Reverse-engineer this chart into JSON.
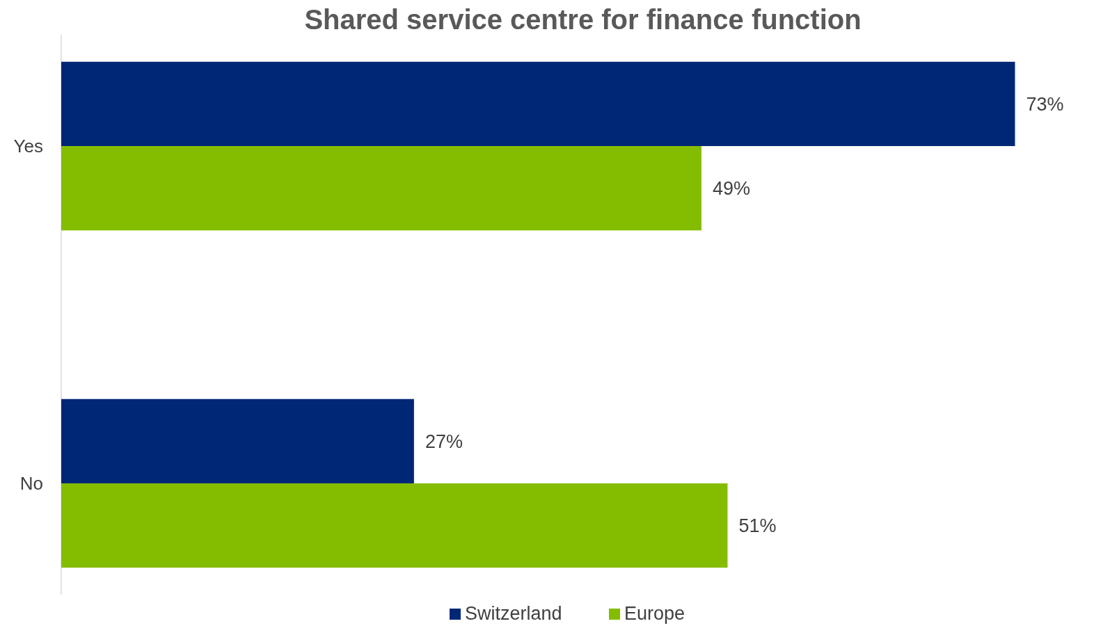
{
  "chart_data": {
    "type": "bar",
    "orientation": "horizontal",
    "title": "Shared service centre for finance function",
    "categories": [
      "Yes",
      "No"
    ],
    "legend": "bottom",
    "series": [
      {
        "name": "Switzerland",
        "color": "#002776",
        "values": [
          73,
          27
        ],
        "value_labels": [
          "73%",
          "27%"
        ]
      },
      {
        "name": "Europe",
        "color": "#84bd00",
        "values": [
          49,
          51
        ],
        "value_labels": [
          "49%",
          "51%"
        ]
      }
    ]
  }
}
